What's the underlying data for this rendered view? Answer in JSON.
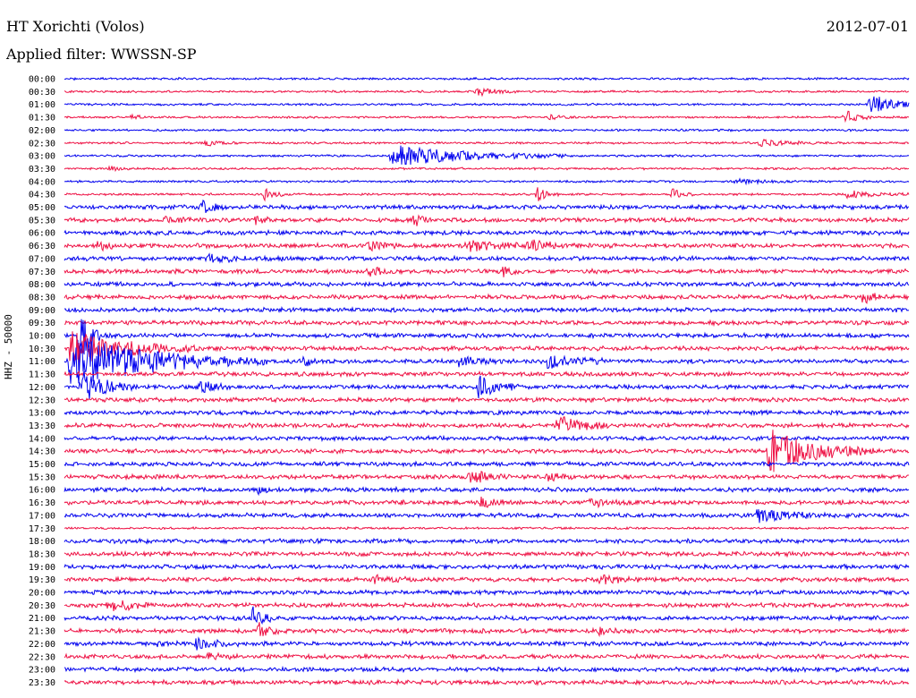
{
  "header": {
    "station": "HT Xorichti (Volos)",
    "date": "2012-07-01",
    "filter": "Applied filter: WWSSN-SP"
  },
  "chart_data": {
    "type": "line",
    "title": "HT Xorichti (Volos)",
    "subtitle": "Applied filter: WWSSN-SP",
    "ylabel": "HHZ - 50000",
    "row_labels": [
      "00:00",
      "00:30",
      "01:00",
      "01:30",
      "02:00",
      "02:30",
      "03:00",
      "03:30",
      "04:00",
      "04:30",
      "05:00",
      "05:30",
      "06:00",
      "06:30",
      "07:00",
      "07:30",
      "08:00",
      "08:30",
      "09:00",
      "09:30",
      "10:00",
      "10:30",
      "11:00",
      "11:30",
      "12:00",
      "12:30",
      "13:00",
      "13:30",
      "14:00",
      "14:30",
      "15:00",
      "15:30",
      "16:00",
      "16:30",
      "17:00",
      "17:30",
      "18:00",
      "18:30",
      "19:00",
      "19:30",
      "20:00",
      "20:30",
      "21:00",
      "21:30",
      "22:00",
      "22:30",
      "23:00",
      "23:30"
    ],
    "series_colors": [
      "#0000ee",
      "#ee1144"
    ],
    "noise_amplitude": [
      1,
      1,
      1,
      1,
      1,
      1,
      1,
      1,
      1,
      1,
      2,
      2,
      2,
      2,
      2,
      2,
      2,
      2,
      2,
      2,
      2,
      2,
      2,
      2,
      2,
      2,
      2,
      2,
      2,
      2,
      2,
      2,
      2,
      2,
      2,
      1,
      2,
      2,
      2,
      2,
      2,
      2,
      2,
      2,
      2,
      2,
      2,
      2
    ],
    "events": [
      {
        "row": 1,
        "minute": 14.6,
        "amplitude": 5,
        "duration": 0.6
      },
      {
        "row": 2,
        "minute": 28.6,
        "amplitude": 12,
        "duration": 0.8
      },
      {
        "row": 3,
        "minute": 2.4,
        "amplitude": 3,
        "duration": 0.3
      },
      {
        "row": 3,
        "minute": 17.2,
        "amplitude": 3,
        "duration": 0.3
      },
      {
        "row": 3,
        "minute": 27.7,
        "amplitude": 9,
        "duration": 0.4
      },
      {
        "row": 5,
        "minute": 5.0,
        "amplitude": 3,
        "duration": 0.5
      },
      {
        "row": 5,
        "minute": 24.7,
        "amplitude": 4,
        "duration": 1.0
      },
      {
        "row": 6,
        "minute": 11.6,
        "amplitude": 12,
        "duration": 2.5
      },
      {
        "row": 7,
        "minute": 1.6,
        "amplitude": 3,
        "duration": 0.3
      },
      {
        "row": 8,
        "minute": 23.8,
        "amplitude": 3,
        "duration": 1.0
      },
      {
        "row": 9,
        "minute": 7.1,
        "amplitude": 7,
        "duration": 0.3
      },
      {
        "row": 9,
        "minute": 16.8,
        "amplitude": 9,
        "duration": 0.3
      },
      {
        "row": 9,
        "minute": 21.6,
        "amplitude": 8,
        "duration": 0.3
      },
      {
        "row": 9,
        "minute": 27.8,
        "amplitude": 4,
        "duration": 1.0
      },
      {
        "row": 10,
        "minute": 4.9,
        "amplitude": 7,
        "duration": 0.4
      },
      {
        "row": 11,
        "minute": 3.5,
        "amplitude": 3,
        "duration": 0.8
      },
      {
        "row": 11,
        "minute": 6.8,
        "amplitude": 5,
        "duration": 0.3
      },
      {
        "row": 11,
        "minute": 12.4,
        "amplitude": 8,
        "duration": 0.3
      },
      {
        "row": 13,
        "minute": 1.2,
        "amplitude": 6,
        "duration": 0.3
      },
      {
        "row": 13,
        "minute": 10.8,
        "amplitude": 6,
        "duration": 0.4
      },
      {
        "row": 13,
        "minute": 14.3,
        "amplitude": 6,
        "duration": 1.2
      },
      {
        "row": 13,
        "minute": 16.5,
        "amplitude": 4,
        "duration": 1.0
      },
      {
        "row": 14,
        "minute": 5.1,
        "amplitude": 4,
        "duration": 1.0
      },
      {
        "row": 15,
        "minute": 10.8,
        "amplitude": 7,
        "duration": 0.5
      },
      {
        "row": 15,
        "minute": 15.6,
        "amplitude": 5,
        "duration": 0.3
      },
      {
        "row": 17,
        "minute": 28.3,
        "amplitude": 7,
        "duration": 0.5
      },
      {
        "row": 20,
        "minute": 0.5,
        "amplitude": 40,
        "duration": 0.3
      },
      {
        "row": 21,
        "minute": 0.2,
        "amplitude": 20,
        "duration": 1.8
      },
      {
        "row": 22,
        "minute": 0.2,
        "amplitude": 28,
        "duration": 2.8
      },
      {
        "row": 22,
        "minute": 8.5,
        "amplitude": 4,
        "duration": 0.5
      },
      {
        "row": 22,
        "minute": 14.0,
        "amplitude": 5,
        "duration": 0.8
      },
      {
        "row": 22,
        "minute": 17.2,
        "amplitude": 12,
        "duration": 0.8
      },
      {
        "row": 24,
        "minute": 0.6,
        "amplitude": 18,
        "duration": 0.8
      },
      {
        "row": 24,
        "minute": 4.8,
        "amplitude": 7,
        "duration": 0.4
      },
      {
        "row": 24,
        "minute": 14.7,
        "amplitude": 12,
        "duration": 0.6
      },
      {
        "row": 27,
        "minute": 17.5,
        "amplitude": 10,
        "duration": 0.8
      },
      {
        "row": 29,
        "minute": 25.0,
        "amplitude": 25,
        "duration": 1.5
      },
      {
        "row": 31,
        "minute": 14.4,
        "amplitude": 6,
        "duration": 0.8
      },
      {
        "row": 31,
        "minute": 17.1,
        "amplitude": 5,
        "duration": 0.5
      },
      {
        "row": 32,
        "minute": 6.9,
        "amplitude": 3,
        "duration": 0.3
      },
      {
        "row": 33,
        "minute": 14.8,
        "amplitude": 5,
        "duration": 0.5
      },
      {
        "row": 33,
        "minute": 18.6,
        "amplitude": 4,
        "duration": 0.8
      },
      {
        "row": 34,
        "minute": 24.6,
        "amplitude": 8,
        "duration": 0.9
      },
      {
        "row": 39,
        "minute": 11.0,
        "amplitude": 5,
        "duration": 0.6
      },
      {
        "row": 39,
        "minute": 19.0,
        "amplitude": 5,
        "duration": 0.6
      },
      {
        "row": 41,
        "minute": 1.5,
        "amplitude": 10,
        "duration": 0.7
      },
      {
        "row": 42,
        "minute": 6.7,
        "amplitude": 14,
        "duration": 0.3
      },
      {
        "row": 43,
        "minute": 6.9,
        "amplitude": 10,
        "duration": 0.3
      },
      {
        "row": 43,
        "minute": 19.0,
        "amplitude": 4,
        "duration": 0.3
      },
      {
        "row": 44,
        "minute": 3.3,
        "amplitude": 3,
        "duration": 0.3
      },
      {
        "row": 44,
        "minute": 4.7,
        "amplitude": 8,
        "duration": 0.6
      },
      {
        "row": 45,
        "minute": 5.1,
        "amplitude": 3,
        "duration": 0.5
      }
    ]
  }
}
